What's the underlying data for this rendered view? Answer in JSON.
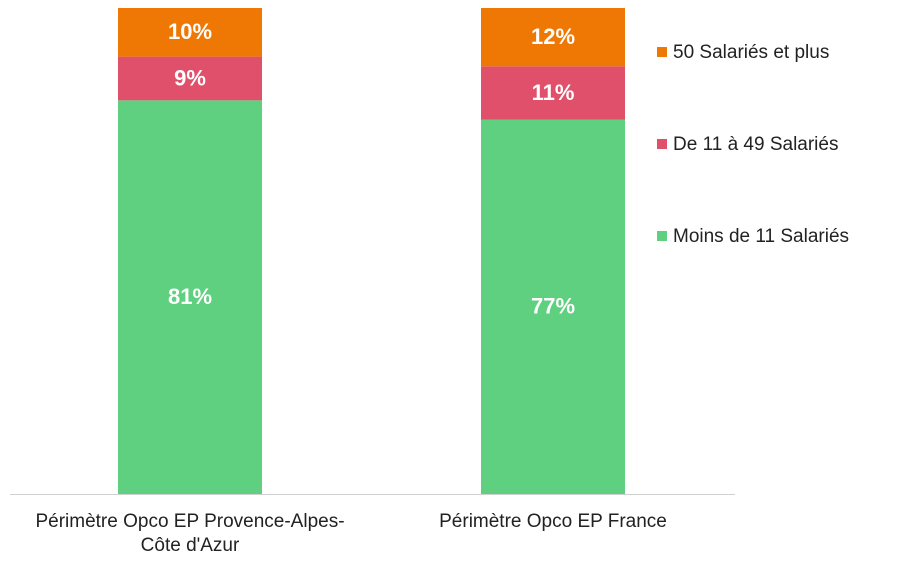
{
  "chart_data": {
    "type": "stacked_bar",
    "categories": [
      "Périmètre Opco EP Provence-Alpes-Côte d'Azur",
      "Périmètre Opco EP France"
    ],
    "series": [
      {
        "name": "Moins de 11 Salariés",
        "color": "#5fd080",
        "values": [
          81,
          77
        ],
        "value_labels": [
          "81%",
          "77%"
        ]
      },
      {
        "name": "De 11 à 49 Salariés",
        "color": "#e1506b",
        "values": [
          9,
          11
        ],
        "value_labels": [
          "9%",
          "11%"
        ]
      },
      {
        "name": "50 Salariés et plus",
        "color": "#ee7803",
        "values": [
          10,
          12
        ],
        "value_labels": [
          "10%",
          "12%"
        ]
      }
    ],
    "legend": "right"
  }
}
